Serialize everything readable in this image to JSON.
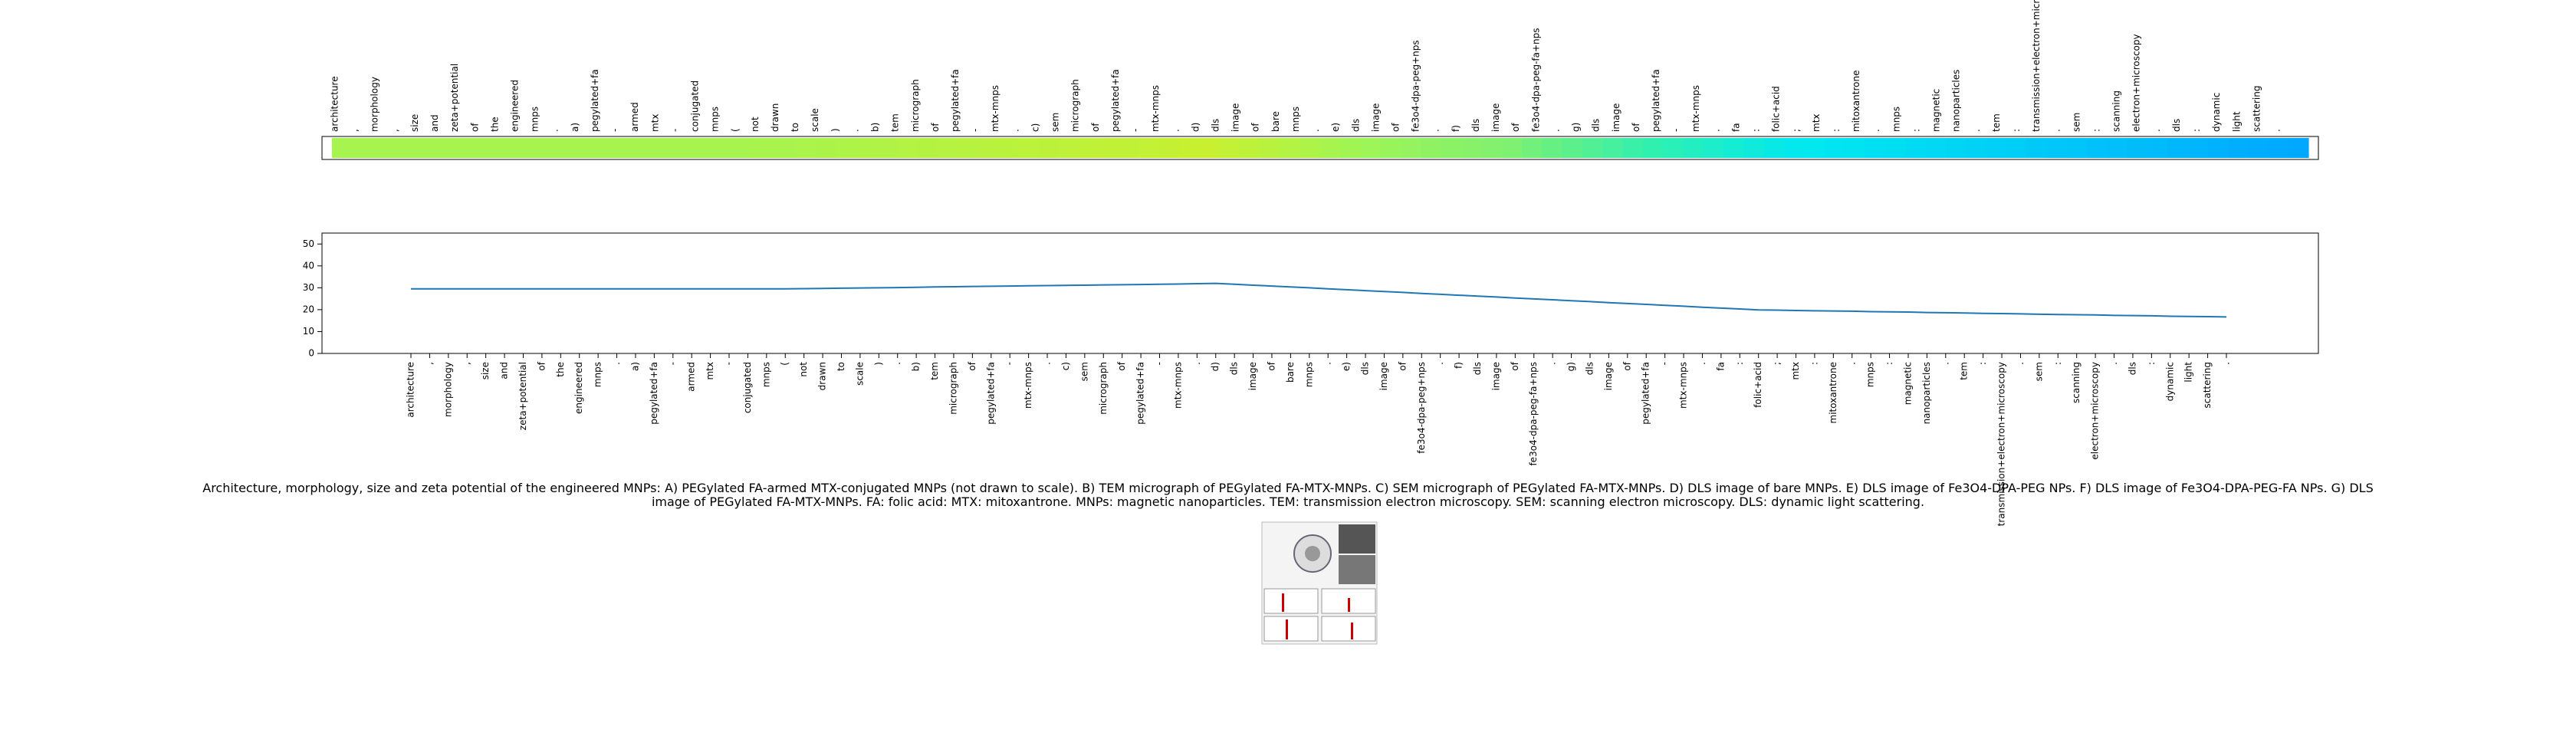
{
  "chart_data": {
    "type": "line",
    "categories": [
      "architecture",
      ",",
      "morphology",
      ",",
      "size",
      "and",
      "zeta+potential",
      "of",
      "the",
      "engineered",
      "mnps",
      ".",
      "a)",
      "pegylated+fa",
      "-",
      "armed",
      "mtx",
      "-",
      "conjugated",
      "mnps",
      "(",
      "not",
      "drawn",
      "to",
      "scale",
      ")",
      ".",
      "b)",
      "tem",
      "micrograph",
      "of",
      "pegylated+fa",
      "-",
      "mtx-mnps",
      ".",
      "c)",
      "sem",
      "micrograph",
      "of",
      "pegylated+fa",
      "-",
      "mtx-mnps",
      ".",
      "d)",
      "dls",
      "image",
      "of",
      "bare",
      "mnps",
      ".",
      "e)",
      "dls",
      "image",
      "of",
      "fe3o4-dpa-peg+nps",
      ".",
      "f)",
      "dls",
      "image",
      "of",
      "fe3o4-dpa-peg-fa+nps",
      ".",
      "g)",
      "dls",
      "image",
      "of",
      "pegylated+fa",
      "-",
      "mtx-mnps",
      ".",
      "fa",
      ":",
      "folic+acid",
      ";",
      "mtx",
      ":",
      "mitoxantrone",
      ".",
      "mnps",
      ":",
      "magnetic",
      "nanoparticles",
      ".",
      "tem",
      ":",
      "transmission+electron+microscopy",
      ".",
      "sem",
      ":",
      "scanning",
      "electron+microscopy",
      ".",
      "dls",
      ":",
      "dynamic",
      "light",
      "scattering",
      "."
    ],
    "values": [
      29.5,
      29.5,
      29.5,
      29.5,
      29.5,
      29.5,
      29.5,
      29.5,
      29.5,
      29.5,
      29.5,
      29.5,
      29.5,
      29.5,
      29.5,
      29.5,
      29.5,
      29.5,
      29.5,
      29.5,
      29.5,
      29.6,
      29.7,
      29.8,
      29.9,
      30.0,
      30.1,
      30.2,
      30.4,
      30.5,
      30.6,
      30.7,
      30.8,
      30.9,
      31.0,
      31.1,
      31.2,
      31.3,
      31.4,
      31.5,
      31.6,
      31.7,
      31.9,
      32.0,
      31.6,
      31.2,
      30.8,
      30.4,
      30.0,
      29.5,
      29.1,
      28.7,
      28.3,
      27.9,
      27.4,
      27.0,
      26.6,
      26.2,
      25.8,
      25.3,
      24.9,
      24.5,
      24.1,
      23.7,
      23.2,
      22.8,
      22.4,
      22.0,
      21.6,
      21.1,
      20.7,
      20.3,
      19.9,
      19.8,
      19.6,
      19.5,
      19.4,
      19.3,
      19.1,
      19.0,
      18.9,
      18.7,
      18.6,
      18.5,
      18.3,
      18.2,
      18.1,
      17.9,
      17.8,
      17.7,
      17.6,
      17.4,
      17.3,
      17.2,
      17.0,
      16.9,
      16.8,
      16.7
    ],
    "color": "#1f77b4",
    "colormap": [
      "#00a8ff",
      "#00e8f0",
      "#30f0b0",
      "#80f070",
      "#9ff555",
      "#c8f030"
    ],
    "ylim": [
      0,
      55
    ],
    "yticks": [
      0,
      10,
      20,
      30,
      40,
      50
    ]
  },
  "caption": "Architecture, morphology, size and zeta potential of the engineered MNPs: A) PEGylated FA-armed MTX-conjugated MNPs (not drawn to scale). B) TEM micrograph of PEGylated FA-MTX-MNPs. C) SEM micrograph of PEGylated FA-MTX-MNPs. D) DLS image of bare MNPs. E) DLS image of Fe3O4-DPA-PEG NPs. F) DLS image of Fe3O4-DPA-PEG-FA NPs. G) DLS image of PEGylated FA-MTX-MNPs. FA: folic acid: MTX: mitoxantrone. MNPs: magnetic nanoparticles. TEM: transmission electron microscopy. SEM: scanning electron microscopy. DLS: dynamic light scattering."
}
